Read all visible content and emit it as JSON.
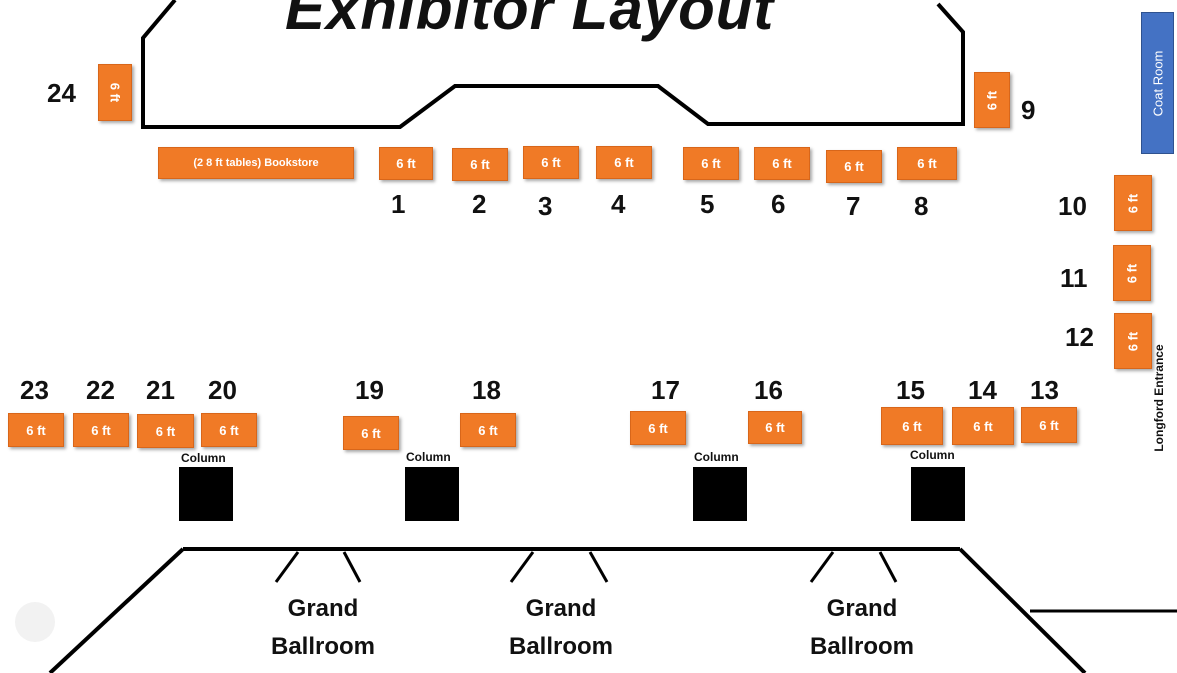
{
  "title": "Exhibitor Layout",
  "tables": [
    {
      "id": "bookstore",
      "label": "(2 8 ft tables) Bookstore",
      "number": ""
    },
    {
      "id": "t1",
      "label": "6 ft",
      "number": "1"
    },
    {
      "id": "t2",
      "label": "6 ft",
      "number": "2"
    },
    {
      "id": "t3",
      "label": "6 ft",
      "number": "3"
    },
    {
      "id": "t4",
      "label": "6 ft",
      "number": "4"
    },
    {
      "id": "t5",
      "label": "6 ft",
      "number": "5"
    },
    {
      "id": "t6",
      "label": "6 ft",
      "number": "6"
    },
    {
      "id": "t7",
      "label": "6 ft",
      "number": "7"
    },
    {
      "id": "t8",
      "label": "6 ft",
      "number": "8"
    },
    {
      "id": "t9",
      "label": "6 ft",
      "number": "9"
    },
    {
      "id": "t10",
      "label": "6 ft",
      "number": "10"
    },
    {
      "id": "t11",
      "label": "6 ft",
      "number": "11"
    },
    {
      "id": "t12",
      "label": "6 ft",
      "number": "12"
    },
    {
      "id": "t13",
      "label": "6 ft",
      "number": "13"
    },
    {
      "id": "t14",
      "label": "6 ft",
      "number": "14"
    },
    {
      "id": "t15",
      "label": "6 ft",
      "number": "15"
    },
    {
      "id": "t16",
      "label": "6 ft",
      "number": "16"
    },
    {
      "id": "t17",
      "label": "6 ft",
      "number": "17"
    },
    {
      "id": "t18",
      "label": "6 ft",
      "number": "18"
    },
    {
      "id": "t19",
      "label": "6 ft",
      "number": "19"
    },
    {
      "id": "t20",
      "label": "6 ft",
      "number": "20"
    },
    {
      "id": "t21",
      "label": "6 ft",
      "number": "21"
    },
    {
      "id": "t22",
      "label": "6 ft",
      "number": "22"
    },
    {
      "id": "t23",
      "label": "6 ft",
      "number": "23"
    },
    {
      "id": "t24",
      "label": "6 ft",
      "number": "24"
    }
  ],
  "column_label": "Column",
  "coat_room": "Coat Room",
  "entrance": "Longford  Entrance",
  "ballroom": {
    "line1": "Grand",
    "line2": "Ballroom"
  }
}
